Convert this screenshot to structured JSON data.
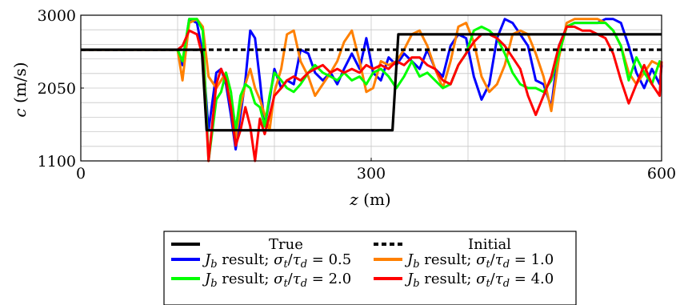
{
  "chart_data": {
    "type": "line",
    "xlabel": "z (m)",
    "ylabel": "c (m/s)",
    "xlim": [
      0,
      600
    ],
    "ylim": [
      1100,
      3000
    ],
    "xticks": [
      0,
      300,
      600
    ],
    "yticks": [
      1100,
      2050,
      3000
    ],
    "grid": true,
    "legend_position": "bottom",
    "series": [
      {
        "name": "True",
        "color": "#000000",
        "style": "solid",
        "x": [
          0,
          125,
          130,
          322,
          328,
          600
        ],
        "y": [
          2550,
          2550,
          1500,
          1500,
          2750,
          2750
        ]
      },
      {
        "name": "Initial",
        "color": "#000000",
        "style": "dashed",
        "x": [
          0,
          600
        ],
        "y": [
          2550,
          2550
        ]
      },
      {
        "name": "J_b result; σt/τd = 0.5",
        "color": "#0000ff",
        "style": "solid",
        "x": [
          0,
          100,
          105,
          112,
          120,
          126,
          132,
          140,
          145,
          150,
          155,
          160,
          165,
          170,
          175,
          180,
          185,
          190,
          195,
          200,
          207,
          213,
          220,
          227,
          235,
          242,
          250,
          258,
          265,
          272,
          280,
          288,
          295,
          302,
          310,
          318,
          326,
          334,
          342,
          350,
          358,
          366,
          374,
          382,
          390,
          398,
          406,
          414,
          422,
          430,
          438,
          446,
          454,
          462,
          470,
          478,
          486,
          494,
          502,
          510,
          518,
          526,
          534,
          542,
          550,
          558,
          566,
          574,
          582,
          590,
          598,
          600
        ],
        "y": [
          2550,
          2550,
          2350,
          2950,
          2900,
          2500,
          1500,
          2250,
          2300,
          2100,
          1700,
          1250,
          1700,
          2150,
          2800,
          2700,
          2150,
          1550,
          1900,
          2300,
          2050,
          2150,
          2100,
          2550,
          2500,
          2250,
          2150,
          2250,
          2100,
          2300,
          2500,
          2300,
          2700,
          2250,
          2150,
          2450,
          2350,
          2500,
          2400,
          2300,
          2550,
          2300,
          2200,
          2600,
          2750,
          2700,
          2200,
          1900,
          2100,
          2700,
          2950,
          2900,
          2750,
          2600,
          2150,
          2100,
          1800,
          2600,
          2850,
          2900,
          2900,
          2900,
          2900,
          2950,
          2950,
          2900,
          2600,
          2250,
          2050,
          2300,
          2100,
          2350
        ]
      },
      {
        "name": "J_b result; σt/τd = 1.0",
        "color": "#ff8000",
        "style": "solid",
        "x": [
          0,
          100,
          105,
          112,
          120,
          126,
          132,
          140,
          145,
          150,
          155,
          160,
          165,
          170,
          175,
          180,
          185,
          190,
          195,
          200,
          207,
          213,
          220,
          227,
          235,
          242,
          250,
          258,
          265,
          272,
          280,
          288,
          295,
          302,
          310,
          318,
          326,
          334,
          342,
          350,
          358,
          366,
          374,
          382,
          390,
          398,
          406,
          414,
          422,
          430,
          438,
          446,
          454,
          462,
          470,
          478,
          486,
          494,
          502,
          510,
          518,
          526,
          534,
          542,
          550,
          558,
          566,
          574,
          582,
          590,
          598,
          600
        ],
        "y": [
          2550,
          2550,
          2150,
          2900,
          2950,
          2850,
          2200,
          2050,
          2150,
          2250,
          2000,
          1400,
          1800,
          2100,
          2300,
          2050,
          1900,
          1700,
          1500,
          2000,
          2300,
          2750,
          2800,
          2400,
          2200,
          1950,
          2100,
          2250,
          2400,
          2650,
          2800,
          2400,
          2000,
          2050,
          2400,
          2350,
          2400,
          2550,
          2750,
          2800,
          2600,
          2300,
          2050,
          2400,
          2850,
          2900,
          2650,
          2200,
          2000,
          2100,
          2350,
          2750,
          2800,
          2750,
          2500,
          2200,
          1750,
          2450,
          2900,
          2950,
          2950,
          2950,
          2950,
          2900,
          2800,
          2600,
          2250,
          2100,
          2250,
          2400,
          2350,
          2300
        ]
      },
      {
        "name": "J_b result; σt/τd = 2.0",
        "color": "#00ff00",
        "style": "solid",
        "x": [
          0,
          100,
          105,
          112,
          120,
          126,
          132,
          140,
          145,
          150,
          155,
          160,
          165,
          170,
          175,
          180,
          185,
          190,
          195,
          200,
          207,
          213,
          220,
          227,
          235,
          242,
          250,
          258,
          265,
          272,
          280,
          288,
          295,
          302,
          310,
          318,
          326,
          334,
          342,
          350,
          358,
          366,
          374,
          382,
          390,
          398,
          406,
          414,
          422,
          430,
          438,
          446,
          454,
          462,
          470,
          478,
          486,
          494,
          502,
          510,
          518,
          526,
          534,
          542,
          550,
          558,
          566,
          574,
          582,
          590,
          598,
          600
        ],
        "y": [
          2550,
          2550,
          2400,
          2950,
          2950,
          2800,
          1100,
          1900,
          2000,
          2250,
          2000,
          1500,
          1950,
          2100,
          2050,
          1850,
          1800,
          1550,
          1950,
          2250,
          2150,
          2050,
          2000,
          2100,
          2250,
          2350,
          2250,
          2200,
          2150,
          2250,
          2150,
          2200,
          2100,
          2250,
          2300,
          2200,
          2050,
          2200,
          2400,
          2200,
          2250,
          2150,
          2050,
          2100,
          2350,
          2500,
          2800,
          2850,
          2800,
          2700,
          2500,
          2250,
          2100,
          2050,
          2050,
          2000,
          2150,
          2500,
          2850,
          2900,
          2900,
          2900,
          2900,
          2900,
          2800,
          2600,
          2150,
          2450,
          2250,
          2100,
          2400,
          2350
        ]
      },
      {
        "name": "J_b result; σt/τd = 4.0",
        "color": "#ff0000",
        "style": "solid",
        "x": [
          0,
          100,
          105,
          112,
          120,
          126,
          132,
          140,
          145,
          150,
          155,
          160,
          165,
          170,
          175,
          180,
          185,
          190,
          195,
          200,
          207,
          213,
          220,
          227,
          235,
          242,
          250,
          258,
          265,
          272,
          280,
          288,
          295,
          302,
          310,
          318,
          326,
          334,
          342,
          350,
          358,
          366,
          374,
          382,
          390,
          398,
          406,
          414,
          422,
          430,
          438,
          446,
          454,
          462,
          470,
          478,
          486,
          494,
          502,
          510,
          518,
          526,
          534,
          542,
          550,
          558,
          566,
          574,
          582,
          590,
          598,
          600
        ],
        "y": [
          2550,
          2550,
          2600,
          2800,
          2750,
          2450,
          1100,
          2100,
          2300,
          2150,
          1800,
          1300,
          1500,
          1800,
          1550,
          1100,
          1650,
          1450,
          1700,
          1950,
          2050,
          2150,
          2200,
          2150,
          2250,
          2300,
          2350,
          2250,
          2300,
          2250,
          2300,
          2250,
          2350,
          2300,
          2350,
          2300,
          2400,
          2350,
          2450,
          2450,
          2350,
          2300,
          2150,
          2100,
          2350,
          2500,
          2650,
          2750,
          2750,
          2700,
          2600,
          2450,
          2300,
          1950,
          1700,
          1950,
          2200,
          2600,
          2850,
          2850,
          2800,
          2800,
          2750,
          2700,
          2500,
          2150,
          1850,
          2100,
          2350,
          2100,
          1950,
          2400
        ]
      }
    ]
  },
  "legend": {
    "true_label": "True",
    "initial_label": "Initial",
    "label_prefix": "result;",
    "entries": [
      {
        "ratio": "0.5",
        "color": "#0000ff"
      },
      {
        "ratio": "1.0",
        "color": "#ff8000"
      },
      {
        "ratio": "2.0",
        "color": "#00ff00"
      },
      {
        "ratio": "4.0",
        "color": "#ff0000"
      }
    ]
  }
}
